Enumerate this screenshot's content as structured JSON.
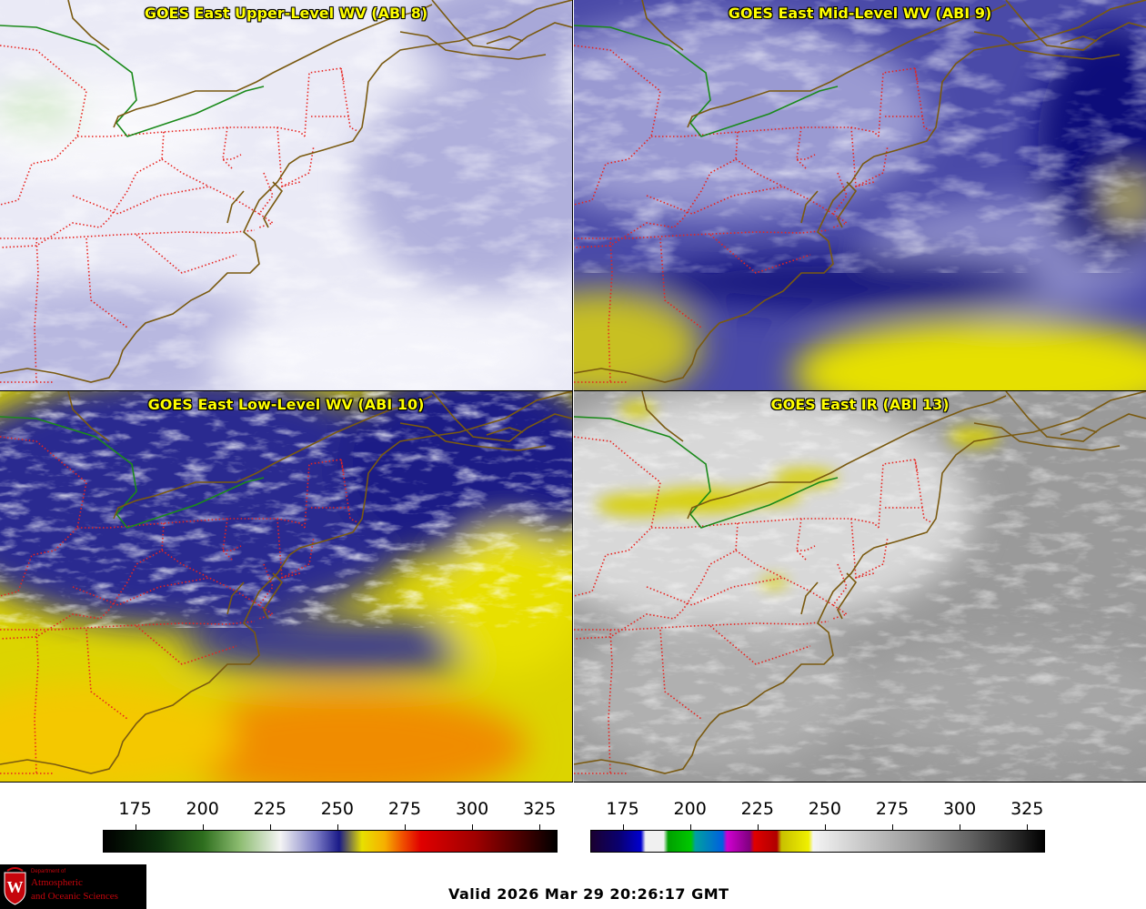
{
  "panels": [
    {
      "id": "upper",
      "title": "GOES East Upper-Level WV (ABI 8)"
    },
    {
      "id": "mid",
      "title": "GOES East Mid-Level WV (ABI 9)"
    },
    {
      "id": "low",
      "title": "GOES East Low-Level WV (ABI 10)"
    },
    {
      "id": "ir",
      "title": "GOES East IR (ABI 13)"
    }
  ],
  "colorbars": {
    "wv": {
      "ticks": [
        "175",
        "200",
        "225",
        "250",
        "275",
        "300",
        "325"
      ],
      "range": [
        163,
        331
      ]
    },
    "ir": {
      "ticks": [
        "175",
        "200",
        "225",
        "250",
        "275",
        "300",
        "325"
      ],
      "range": [
        163,
        331
      ]
    }
  },
  "logo": {
    "line1": "Department of",
    "line2": "Atmospheric",
    "line3": "and Oceanic Sciences",
    "seal_letter": "W"
  },
  "valid_time": "Valid 2026 Mar 29 20:26:17 GMT",
  "colors": {
    "state_borders": "#e8231f",
    "coastline": "#7a5a10",
    "international_border": "#1a8a1a",
    "title": "#ffff00"
  }
}
